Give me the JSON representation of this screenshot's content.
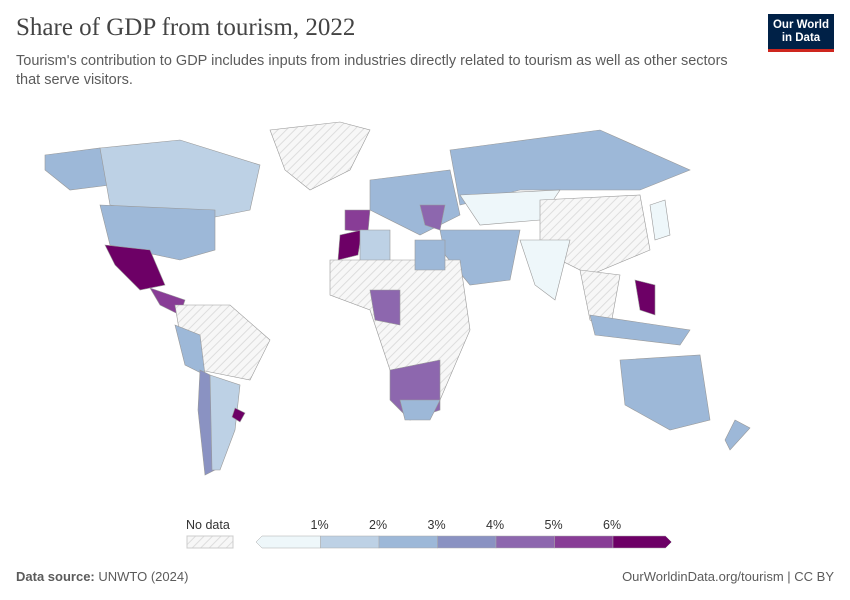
{
  "header": {
    "title": "Share of GDP from tourism, 2022",
    "subtitle": "Tourism's contribution to GDP includes inputs from industries directly related to tourism as well as other sectors that serve visitors.",
    "logo_text": "Our World in Data"
  },
  "legend": {
    "no_data_label": "No data",
    "ticks": [
      "1%",
      "2%",
      "3%",
      "4%",
      "5%",
      "6%"
    ],
    "colors": [
      "#eef7fa",
      "#bdd1e5",
      "#9db8d8",
      "#8a92c2",
      "#8d67ae",
      "#883d96",
      "#6d0066"
    ],
    "no_data_color": "#eeeeee"
  },
  "footer": {
    "source_label": "Data source:",
    "source": "UNWTO (2024)",
    "link": "OurWorldinData.org/tourism | CC BY"
  }
}
